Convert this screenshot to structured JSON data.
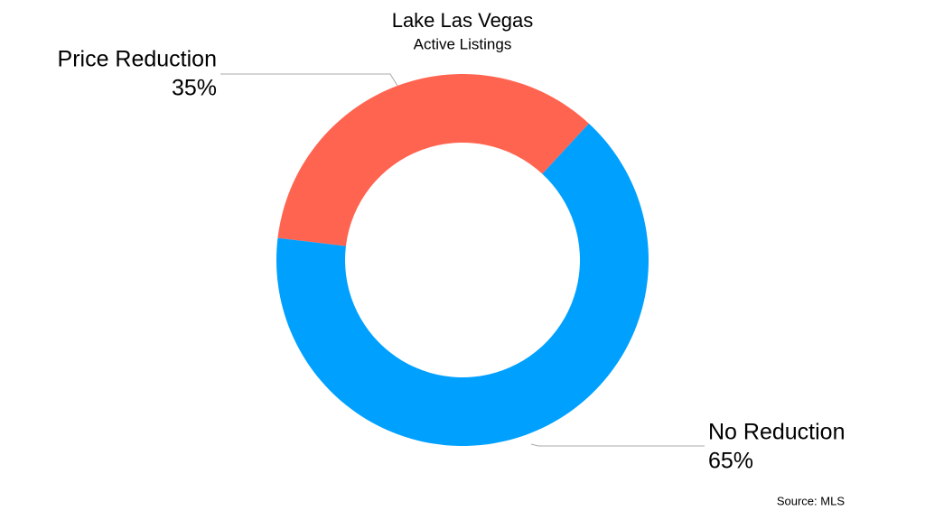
{
  "chart_data": {
    "type": "donut",
    "title": "Lake Las Vegas",
    "subtitle": "Active Listings",
    "categories": [
      "Price Reduction",
      "No Reduction"
    ],
    "values": [
      35,
      65
    ],
    "value_labels": [
      "35%",
      "65%"
    ],
    "colors": [
      "#ff6450",
      "#00a0ff"
    ],
    "source": "Source: MLS"
  }
}
